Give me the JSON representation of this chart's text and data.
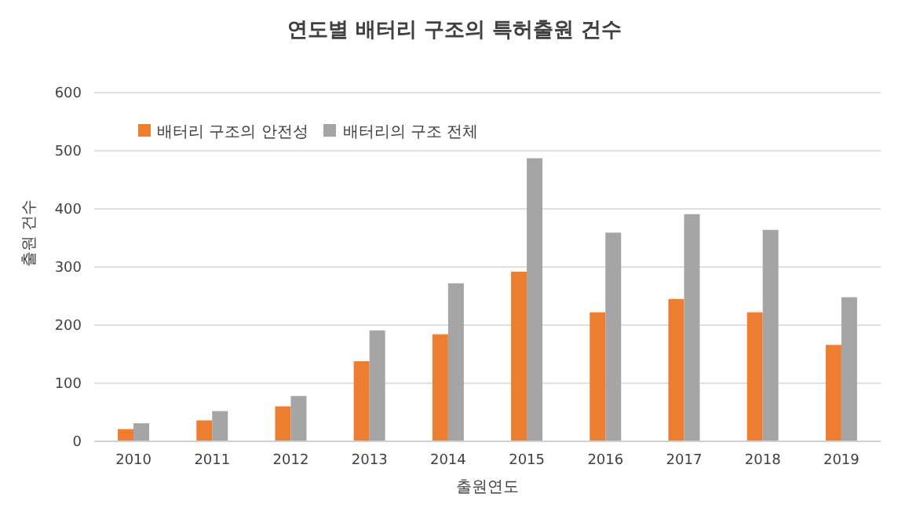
{
  "chart_data": {
    "type": "bar",
    "title": "연도별 배터리 구조의 특허출원 건수",
    "xlabel": "출원연도",
    "ylabel": "출원 건수",
    "categories": [
      "2010",
      "2011",
      "2012",
      "2013",
      "2014",
      "2015",
      "2016",
      "2017",
      "2018",
      "2019"
    ],
    "series": [
      {
        "name": "배터리 구조의 안전성",
        "color": "#ed7d31",
        "values": [
          21,
          36,
          60,
          138,
          184,
          292,
          222,
          245,
          222,
          166
        ]
      },
      {
        "name": "배터리의 구조 전체",
        "color": "#a5a5a5",
        "values": [
          31,
          52,
          78,
          191,
          272,
          487,
          359,
          391,
          364,
          248
        ]
      }
    ],
    "ylim": [
      0,
      600
    ],
    "yticks": [
      0,
      100,
      200,
      300,
      400,
      500,
      600
    ],
    "grid": "y",
    "legend": "top left"
  }
}
